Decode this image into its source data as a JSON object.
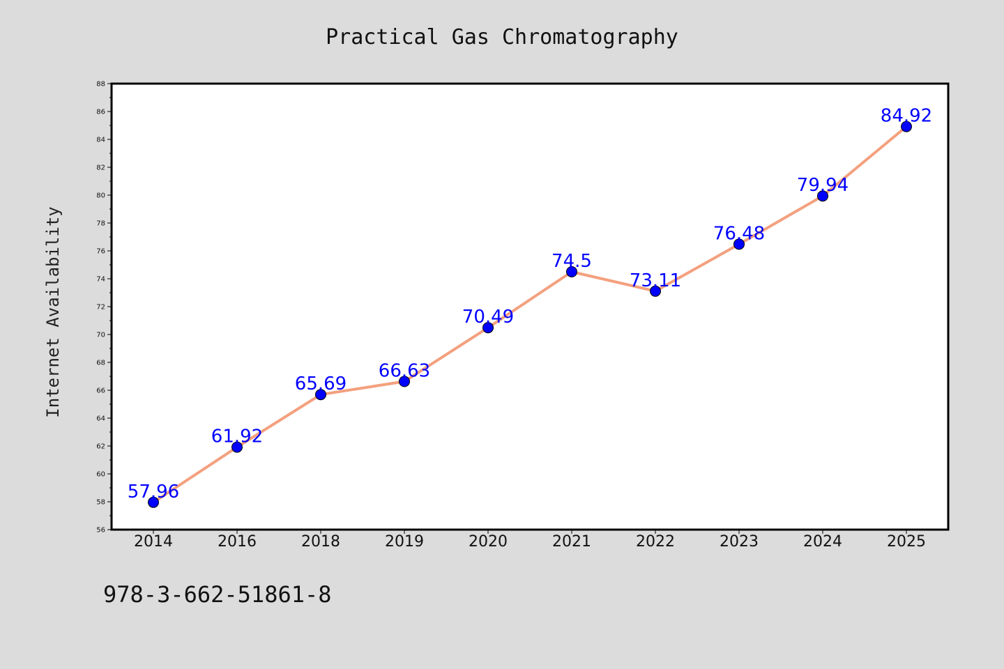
{
  "chart_data": {
    "type": "line",
    "title": "Practical Gas Chromatography",
    "xlabel": "",
    "ylabel": "Internet Availability",
    "categories": [
      "2014",
      "2016",
      "2018",
      "2019",
      "2020",
      "2021",
      "2022",
      "2023",
      "2024",
      "2025"
    ],
    "series": [
      {
        "values": [
          57.96,
          61.92,
          65.69,
          66.63,
          70.49,
          74.5,
          73.11,
          76.48,
          79.94,
          84.92
        ],
        "line_color": "#f4a07e",
        "marker_color": "#0000ff"
      }
    ],
    "data_labels": [
      "57.96",
      "61.92",
      "65.69",
      "66.63",
      "70.49",
      "74.5",
      "73.11",
      "76.48",
      "79.94",
      "84.92"
    ],
    "ylim": [
      56,
      88
    ],
    "yticks": [
      56,
      58,
      60,
      62,
      64,
      66,
      68,
      70,
      72,
      74,
      76,
      78,
      80,
      82,
      84,
      86,
      88
    ],
    "grid": false,
    "data_label_color": "#0000ff",
    "background_color": "#dcdcdc",
    "plot_background": "#ffffff"
  },
  "footer": {
    "isbn": "978-3-662-51861-8"
  }
}
